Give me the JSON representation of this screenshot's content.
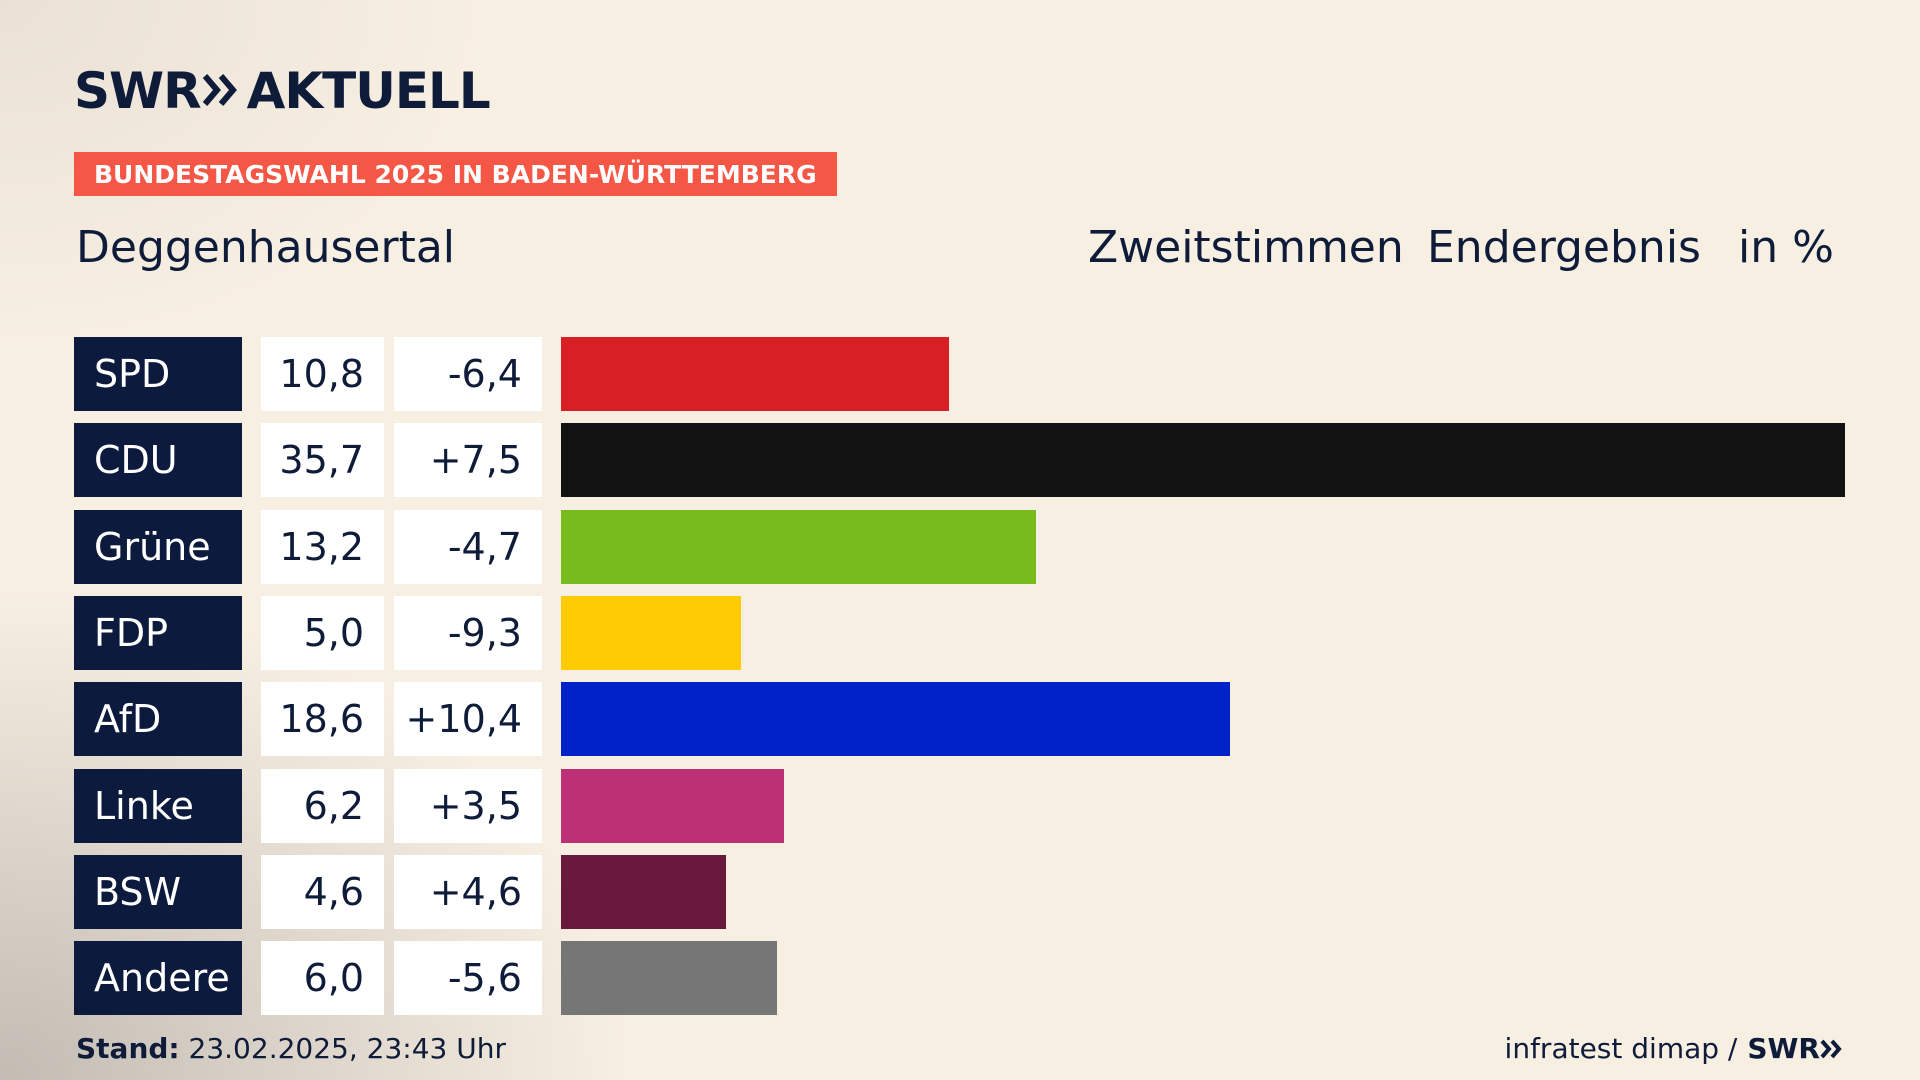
{
  "brand": {
    "logo_left": "SWR",
    "logo_right": "AKTUELL",
    "footer_logo": "SWR"
  },
  "banner": "BUNDESTAGSWAHL 2025 IN BADEN-WÜRTTEMBERG",
  "location": "Deggenhausertal",
  "headers": {
    "vote_type": "Zweitstimmen",
    "result": "Endergebnis",
    "unit": "in %"
  },
  "chart_data": {
    "type": "bar",
    "title": "Deggenhausertal",
    "categories": [
      "SPD",
      "CDU",
      "Grüne",
      "FDP",
      "AfD",
      "Linke",
      "BSW",
      "Andere"
    ],
    "values": [
      10.8,
      35.7,
      13.2,
      5.0,
      18.6,
      6.2,
      4.6,
      6.0
    ],
    "value_labels": [
      "10,8",
      "35,7",
      "13,2",
      "5,0",
      "18,6",
      "6,2",
      "4,6",
      "6,0"
    ],
    "diff_labels": [
      "-6,4",
      "+7,5",
      "-4,7",
      "-9,3",
      "+10,4",
      "+3,5",
      "+4,6",
      "-5,6"
    ],
    "diffs": [
      -6.4,
      7.5,
      -4.7,
      -9.3,
      10.4,
      3.5,
      4.6,
      -5.6
    ],
    "colors": [
      "#d91f26",
      "#121212",
      "#78bb1d",
      "#ffcb05",
      "#0022c8",
      "#bd3075",
      "#69183e",
      "#767676"
    ],
    "xlim": [
      0,
      35.7
    ],
    "orientation": "horizontal"
  },
  "footer": {
    "stand_label": "Stand:",
    "stand_value": "23.02.2025, 23:43 Uhr",
    "source": "infratest dimap /"
  }
}
